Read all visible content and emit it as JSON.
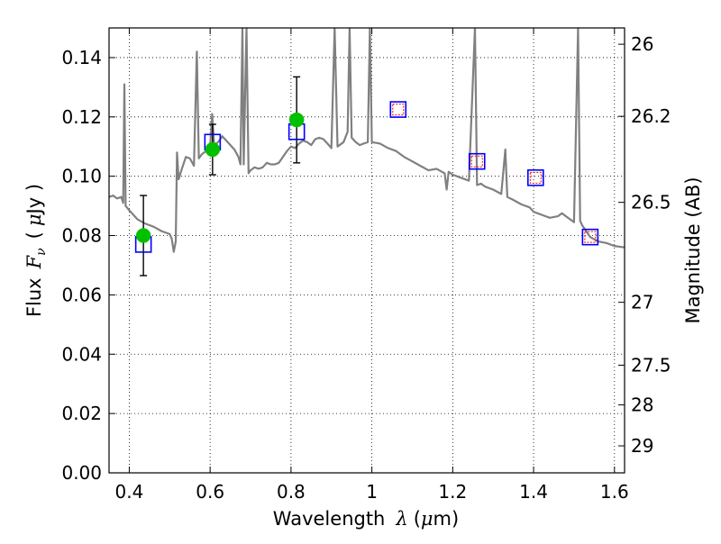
{
  "chart_data": {
    "type": "scatter",
    "title": "",
    "xlabel": {
      "prefix": "Wavelength",
      "symbol": "λ",
      "unit_open": "(",
      "unit_mu": "μ",
      "unit_rest": "m)"
    },
    "ylabel": {
      "prefix": "Flux",
      "symbol": "F",
      "subscript": "ν",
      "unit_open": "(",
      "unit_mu": "μ",
      "unit_rest": "Jy )"
    },
    "y2label": "Magnitude (AB)",
    "xlim": [
      0.35,
      1.625
    ],
    "ylim": [
      0.0,
      0.15
    ],
    "grid": true,
    "x_ticks": [
      {
        "value": 0.4,
        "label": "0.4"
      },
      {
        "value": 0.6,
        "label": "0.6"
      },
      {
        "value": 0.8,
        "label": "0.8"
      },
      {
        "value": 1.0,
        "label": "1"
      },
      {
        "value": 1.2,
        "label": "1.2"
      },
      {
        "value": 1.4,
        "label": "1.4"
      },
      {
        "value": 1.6,
        "label": "1.6"
      }
    ],
    "y_ticks": [
      {
        "value": 0.0,
        "label": "0.00"
      },
      {
        "value": 0.02,
        "label": "0.02"
      },
      {
        "value": 0.04,
        "label": "0.04"
      },
      {
        "value": 0.06,
        "label": "0.06"
      },
      {
        "value": 0.08,
        "label": "0.08"
      },
      {
        "value": 0.1,
        "label": "0.10"
      },
      {
        "value": 0.12,
        "label": "0.12"
      },
      {
        "value": 0.14,
        "label": "0.14"
      }
    ],
    "y2_ticks": [
      {
        "flux": 0.1445,
        "label": "26"
      },
      {
        "flux": 0.1202,
        "label": "26.2"
      },
      {
        "flux": 0.0912,
        "label": "26.5"
      },
      {
        "flux": 0.0575,
        "label": "27"
      },
      {
        "flux": 0.0363,
        "label": "27.5"
      },
      {
        "flux": 0.0229,
        "label": "28"
      },
      {
        "flux": 0.0091,
        "label": "29"
      }
    ],
    "series": [
      {
        "kind": "model-spectrum",
        "color": "#808080",
        "points": [
          [
            0.35,
            0.093
          ],
          [
            0.36,
            0.0935
          ],
          [
            0.37,
            0.0925
          ],
          [
            0.38,
            0.093
          ],
          [
            0.385,
            0.091
          ],
          [
            0.388,
            0.131
          ],
          [
            0.391,
            0.09
          ],
          [
            0.4,
            0.0885
          ],
          [
            0.42,
            0.0855
          ],
          [
            0.44,
            0.084
          ],
          [
            0.46,
            0.083
          ],
          [
            0.48,
            0.0815
          ],
          [
            0.5,
            0.0805
          ],
          [
            0.505,
            0.079
          ],
          [
            0.51,
            0.0745
          ],
          [
            0.515,
            0.078
          ],
          [
            0.518,
            0.108
          ],
          [
            0.522,
            0.099
          ],
          [
            0.53,
            0.1025
          ],
          [
            0.54,
            0.1065
          ],
          [
            0.55,
            0.106
          ],
          [
            0.56,
            0.1035
          ],
          [
            0.567,
            0.142
          ],
          [
            0.572,
            0.106
          ],
          [
            0.58,
            0.1075
          ],
          [
            0.59,
            0.1085
          ],
          [
            0.6,
            0.11
          ],
          [
            0.605,
            0.121
          ],
          [
            0.61,
            0.1105
          ],
          [
            0.62,
            0.1115
          ],
          [
            0.63,
            0.1135
          ],
          [
            0.64,
            0.112
          ],
          [
            0.65,
            0.1105
          ],
          [
            0.66,
            0.109
          ],
          [
            0.67,
            0.1065
          ],
          [
            0.675,
            0.104
          ],
          [
            0.68,
            0.15
          ],
          [
            0.683,
            0.104
          ],
          [
            0.69,
            0.15
          ],
          [
            0.695,
            0.101
          ],
          [
            0.7,
            0.102
          ],
          [
            0.71,
            0.103
          ],
          [
            0.72,
            0.1025
          ],
          [
            0.73,
            0.103
          ],
          [
            0.74,
            0.1045
          ],
          [
            0.75,
            0.104
          ],
          [
            0.76,
            0.104
          ],
          [
            0.77,
            0.1045
          ],
          [
            0.78,
            0.1065
          ],
          [
            0.79,
            0.1085
          ],
          [
            0.8,
            0.11
          ],
          [
            0.81,
            0.1095
          ],
          [
            0.82,
            0.111
          ],
          [
            0.83,
            0.112
          ],
          [
            0.84,
            0.1115
          ],
          [
            0.85,
            0.1105
          ],
          [
            0.86,
            0.1125
          ],
          [
            0.87,
            0.113
          ],
          [
            0.88,
            0.1125
          ],
          [
            0.89,
            0.111
          ],
          [
            0.9,
            0.1095
          ],
          [
            0.908,
            0.15
          ],
          [
            0.915,
            0.11
          ],
          [
            0.93,
            0.1115
          ],
          [
            0.94,
            0.115
          ],
          [
            0.945,
            0.15
          ],
          [
            0.95,
            0.113
          ],
          [
            0.96,
            0.1115
          ],
          [
            0.97,
            0.1105
          ],
          [
            0.98,
            0.111
          ],
          [
            0.99,
            0.1115
          ],
          [
            0.995,
            0.15
          ],
          [
            1.0,
            0.1115
          ],
          [
            1.02,
            0.111
          ],
          [
            1.04,
            0.1095
          ],
          [
            1.06,
            0.1085
          ],
          [
            1.08,
            0.1065
          ],
          [
            1.1,
            0.105
          ],
          [
            1.12,
            0.1035
          ],
          [
            1.14,
            0.102
          ],
          [
            1.16,
            0.1025
          ],
          [
            1.18,
            0.101
          ],
          [
            1.185,
            0.0955
          ],
          [
            1.19,
            0.1015
          ],
          [
            1.2,
            0.1005
          ],
          [
            1.22,
            0.0995
          ],
          [
            1.24,
            0.0985
          ],
          [
            1.255,
            0.15
          ],
          [
            1.26,
            0.097
          ],
          [
            1.27,
            0.0975
          ],
          [
            1.28,
            0.0965
          ],
          [
            1.3,
            0.0955
          ],
          [
            1.32,
            0.094
          ],
          [
            1.33,
            0.109
          ],
          [
            1.335,
            0.093
          ],
          [
            1.35,
            0.092
          ],
          [
            1.37,
            0.0905
          ],
          [
            1.39,
            0.0895
          ],
          [
            1.4,
            0.088
          ],
          [
            1.42,
            0.087
          ],
          [
            1.44,
            0.086
          ],
          [
            1.46,
            0.0865
          ],
          [
            1.47,
            0.0875
          ],
          [
            1.48,
            0.0865
          ],
          [
            1.49,
            0.0855
          ],
          [
            1.5,
            0.0845
          ],
          [
            1.51,
            0.15
          ],
          [
            1.515,
            0.085
          ],
          [
            1.52,
            0.0835
          ],
          [
            1.53,
            0.0815
          ],
          [
            1.54,
            0.0795
          ],
          [
            1.56,
            0.078
          ],
          [
            1.58,
            0.0775
          ],
          [
            1.6,
            0.0765
          ],
          [
            1.625,
            0.076
          ]
        ]
      },
      {
        "kind": "observed",
        "color": "#00c000",
        "points": [
          {
            "x": 0.435,
            "y": 0.08,
            "yerr": 0.0135
          },
          {
            "x": 0.606,
            "y": 0.109,
            "yerr": 0.0085
          },
          {
            "x": 0.814,
            "y": 0.119,
            "yerr": 0.0145
          }
        ]
      },
      {
        "kind": "model-photometry",
        "color": "#0000ff",
        "points": [
          {
            "x": 0.435,
            "y": 0.077
          },
          {
            "x": 0.606,
            "y": 0.1115
          },
          {
            "x": 0.814,
            "y": 0.115
          },
          {
            "x": 1.065,
            "y": 0.1225
          },
          {
            "x": 1.26,
            "y": 0.105
          },
          {
            "x": 1.405,
            "y": 0.0995
          },
          {
            "x": 1.54,
            "y": 0.0795
          }
        ]
      },
      {
        "kind": "upper-limit",
        "color": "#ff0000",
        "points": [
          {
            "x": 1.065,
            "y": 0.1225
          },
          {
            "x": 1.26,
            "y": 0.105
          },
          {
            "x": 1.405,
            "y": 0.0995
          },
          {
            "x": 1.54,
            "y": 0.0795
          }
        ]
      }
    ]
  }
}
